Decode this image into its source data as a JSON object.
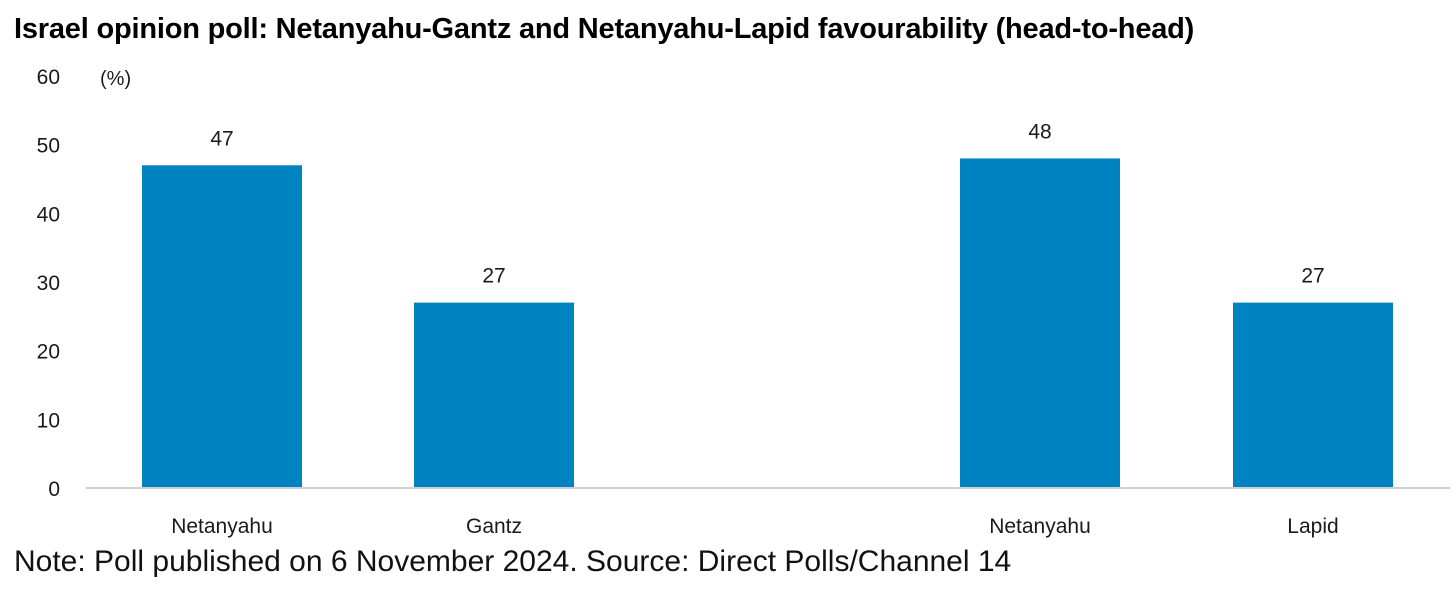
{
  "title": "Israel opinion poll: Netanyahu-Gantz and Netanyahu-Lapid favourability (head-to-head)",
  "note": "Note: Poll published on 6 November 2024. Source: Direct Polls/Channel 14",
  "colors": {
    "bar": "#0084c1",
    "axis": "#d0d0d0",
    "text": "#1a1a1a"
  },
  "chart_data": {
    "type": "bar",
    "title": "Israel opinion poll: Netanyahu-Gantz and Netanyahu-Lapid favourability (head-to-head)",
    "unit_label": "(%)",
    "ylim": [
      0,
      60
    ],
    "yticks": [
      0,
      10,
      20,
      30,
      40,
      50,
      60
    ],
    "grid": false,
    "categories": [
      "Netanyahu",
      "Gantz",
      "Netanyahu",
      "Lapid"
    ],
    "values": [
      47,
      27,
      48,
      27
    ],
    "data_labels": [
      "47",
      "27",
      "48",
      "27"
    ]
  }
}
